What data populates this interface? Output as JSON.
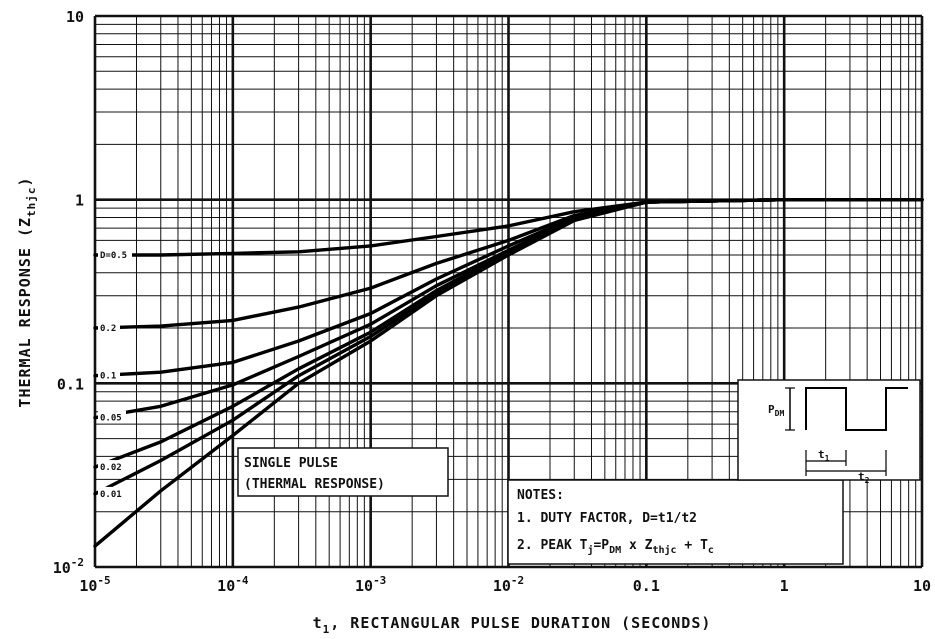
{
  "chart_data": {
    "type": "line",
    "x_scale": "log",
    "y_scale": "log",
    "xlim": [
      1e-05,
      10
    ],
    "ylim": [
      0.01,
      10
    ],
    "grid": true,
    "xlabel_main": "t",
    "xlabel_sub": "1",
    "xlabel_rest": ", RECTANGULAR PULSE DURATION (SECONDS)",
    "ylabel_main": "THERMAL RESPONSE (Z",
    "ylabel_sub": "thjc",
    "ylabel_close": ")",
    "x_ticks": [
      {
        "value": 1e-05,
        "base": "10",
        "exp": "-5"
      },
      {
        "value": 0.0001,
        "base": "10",
        "exp": "-4"
      },
      {
        "value": 0.001,
        "base": "10",
        "exp": "-3"
      },
      {
        "value": 0.01,
        "base": "10",
        "exp": "-2"
      },
      {
        "value": 0.1,
        "base": "0.1",
        "exp": ""
      },
      {
        "value": 1,
        "base": "1",
        "exp": ""
      },
      {
        "value": 10,
        "base": "10",
        "exp": ""
      }
    ],
    "y_ticks": [
      {
        "value": 10,
        "base": "10",
        "exp": ""
      },
      {
        "value": 1,
        "base": "1",
        "exp": ""
      },
      {
        "value": 0.1,
        "base": "0.1",
        "exp": ""
      },
      {
        "value": 0.01,
        "base": "10",
        "exp": "-2"
      }
    ],
    "series": [
      {
        "name": "D=0.5",
        "x": [
          1e-05,
          3e-05,
          0.0001,
          0.0003,
          0.001,
          0.003,
          0.01,
          0.03,
          0.1,
          1,
          10
        ],
        "y": [
          0.5,
          0.5,
          0.51,
          0.52,
          0.56,
          0.63,
          0.72,
          0.86,
          0.97,
          1.0,
          1.0
        ]
      },
      {
        "name": "0.2",
        "x": [
          1e-05,
          3e-05,
          0.0001,
          0.0003,
          0.001,
          0.003,
          0.01,
          0.03,
          0.1,
          1,
          10
        ],
        "y": [
          0.2,
          0.205,
          0.22,
          0.26,
          0.33,
          0.45,
          0.6,
          0.82,
          0.97,
          1.0,
          1.0
        ]
      },
      {
        "name": "0.1",
        "x": [
          1e-05,
          3e-05,
          0.0001,
          0.0003,
          0.001,
          0.003,
          0.01,
          0.03,
          0.1,
          1,
          10
        ],
        "y": [
          0.11,
          0.115,
          0.13,
          0.17,
          0.24,
          0.37,
          0.56,
          0.8,
          0.97,
          1.0,
          1.0
        ]
      },
      {
        "name": "0.05",
        "x": [
          1e-05,
          3e-05,
          0.0001,
          0.0003,
          0.001,
          0.003,
          0.01,
          0.03,
          0.1,
          1,
          10
        ],
        "y": [
          0.065,
          0.075,
          0.098,
          0.14,
          0.21,
          0.34,
          0.53,
          0.79,
          0.97,
          1.0,
          1.0
        ]
      },
      {
        "name": "0.02",
        "x": [
          1e-05,
          3e-05,
          0.0001,
          0.0003,
          0.001,
          0.003,
          0.01,
          0.03,
          0.1,
          1,
          10
        ],
        "y": [
          0.035,
          0.048,
          0.075,
          0.12,
          0.19,
          0.32,
          0.52,
          0.78,
          0.97,
          1.0,
          1.0
        ]
      },
      {
        "name": "0.01",
        "x": [
          1e-05,
          3e-05,
          0.0001,
          0.0003,
          0.001,
          0.003,
          0.01,
          0.03,
          0.1,
          1,
          10
        ],
        "y": [
          0.025,
          0.038,
          0.063,
          0.11,
          0.18,
          0.31,
          0.51,
          0.78,
          0.97,
          1.0,
          1.0
        ]
      },
      {
        "name": "SINGLE PULSE",
        "x": [
          1e-05,
          3e-05,
          0.0001,
          0.0003,
          0.001,
          0.003,
          0.01,
          0.03,
          0.1,
          1,
          10
        ],
        "y": [
          0.013,
          0.026,
          0.052,
          0.1,
          0.17,
          0.3,
          0.5,
          0.77,
          0.97,
          1.0,
          1.0
        ]
      }
    ],
    "annotations": {
      "single_pulse_line1": "SINGLE PULSE",
      "single_pulse_line2": "(THERMAL RESPONSE)",
      "notes_title": "NOTES:",
      "note1": "1. DUTY FACTOR, D=t1/t2",
      "note2_a": "2. PEAK T",
      "note2_j": "j",
      "note2_b": "=P",
      "note2_dm": "DM",
      "note2_c": " x Z",
      "note2_thjc": "thjc",
      "note2_d": " + T",
      "note2_csub": "c",
      "inset_pdm": "P",
      "inset_pdm_sub": "DM",
      "inset_t1": "t",
      "inset_t1_sub": "1",
      "inset_t2": "t",
      "inset_t2_sub": "2"
    }
  }
}
